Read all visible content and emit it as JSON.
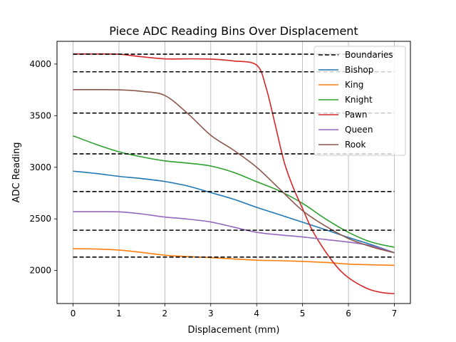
{
  "chart_data": {
    "type": "line",
    "title": "Piece ADC Reading Bins Over Displacement",
    "xlabel": "Displacement (mm)",
    "ylabel": "ADC Reading",
    "xlim": [
      -0.35,
      7.35
    ],
    "ylim": [
      1680,
      4220
    ],
    "xticks": [
      0,
      1,
      2,
      3,
      4,
      5,
      6,
      7
    ],
    "xtick_labels": [
      "0",
      "1",
      "2",
      "3",
      "4",
      "5",
      "6",
      "7"
    ],
    "yticks": [
      2000,
      2500,
      3000,
      3500,
      4000
    ],
    "ytick_labels": [
      "2000",
      "2500",
      "3000",
      "3500",
      "4000"
    ],
    "grid": "x",
    "legend": "upper-right",
    "boundaries": {
      "name": "Boundaries",
      "color": "#000000",
      "style": "dashed",
      "x_range": [
        0,
        7
      ],
      "values": [
        4095,
        3925,
        3525,
        3130,
        2765,
        2390,
        2130
      ]
    },
    "series": [
      {
        "name": "Bishop",
        "color": "#1f77b4",
        "x": [
          0,
          0.5,
          1,
          1.5,
          2,
          2.5,
          3,
          3.5,
          4,
          4.5,
          5,
          5.5,
          6,
          6.5,
          7
        ],
        "values": [
          2962,
          2940,
          2912,
          2890,
          2862,
          2818,
          2755,
          2690,
          2612,
          2540,
          2468,
          2395,
          2320,
          2250,
          2172
        ]
      },
      {
        "name": "King",
        "color": "#ff7f0e",
        "x": [
          0,
          0.5,
          1,
          1.5,
          2,
          2.5,
          3,
          3.5,
          4,
          4.5,
          5,
          5.5,
          6,
          6.5,
          7
        ],
        "values": [
          2212,
          2208,
          2198,
          2175,
          2148,
          2135,
          2125,
          2112,
          2100,
          2095,
          2088,
          2078,
          2062,
          2055,
          2050
        ]
      },
      {
        "name": "Knight",
        "color": "#2ca02c",
        "x": [
          0,
          0.5,
          1,
          1.5,
          2,
          2.5,
          3,
          3.5,
          4,
          4.5,
          5,
          5.5,
          6,
          6.5,
          7
        ],
        "values": [
          3305,
          3222,
          3150,
          3100,
          3062,
          3040,
          3012,
          2950,
          2860,
          2770,
          2650,
          2500,
          2370,
          2275,
          2225
        ]
      },
      {
        "name": "Pawn",
        "color": "#d62728",
        "x": [
          0,
          0.5,
          1,
          1.5,
          2,
          2.5,
          3,
          3.5,
          4,
          4.2,
          4.4,
          4.6,
          4.8,
          5,
          5.2,
          5.4,
          5.6,
          5.8,
          6,
          6.25,
          6.5,
          6.75,
          7
        ],
        "values": [
          4098,
          4098,
          4095,
          4070,
          4050,
          4050,
          4048,
          4030,
          3990,
          3780,
          3420,
          3050,
          2800,
          2600,
          2400,
          2250,
          2120,
          2010,
          1930,
          1860,
          1810,
          1785,
          1775
        ]
      },
      {
        "name": "Queen",
        "color": "#9467bd",
        "x": [
          0,
          0.5,
          1,
          1.5,
          2,
          2.5,
          3,
          3.5,
          4,
          4.5,
          5,
          5.5,
          6,
          6.5,
          7
        ],
        "values": [
          2570,
          2570,
          2568,
          2548,
          2518,
          2498,
          2470,
          2420,
          2370,
          2345,
          2325,
          2300,
          2275,
          2240,
          2172
        ]
      },
      {
        "name": "Rook",
        "color": "#8c564b",
        "x": [
          0,
          0.5,
          1,
          1.5,
          2,
          2.5,
          3,
          3.5,
          4,
          4.5,
          5,
          5.5,
          6,
          6.5,
          7
        ],
        "values": [
          3752,
          3752,
          3750,
          3735,
          3695,
          3520,
          3310,
          3165,
          3000,
          2790,
          2580,
          2430,
          2310,
          2230,
          2172
        ]
      }
    ]
  }
}
